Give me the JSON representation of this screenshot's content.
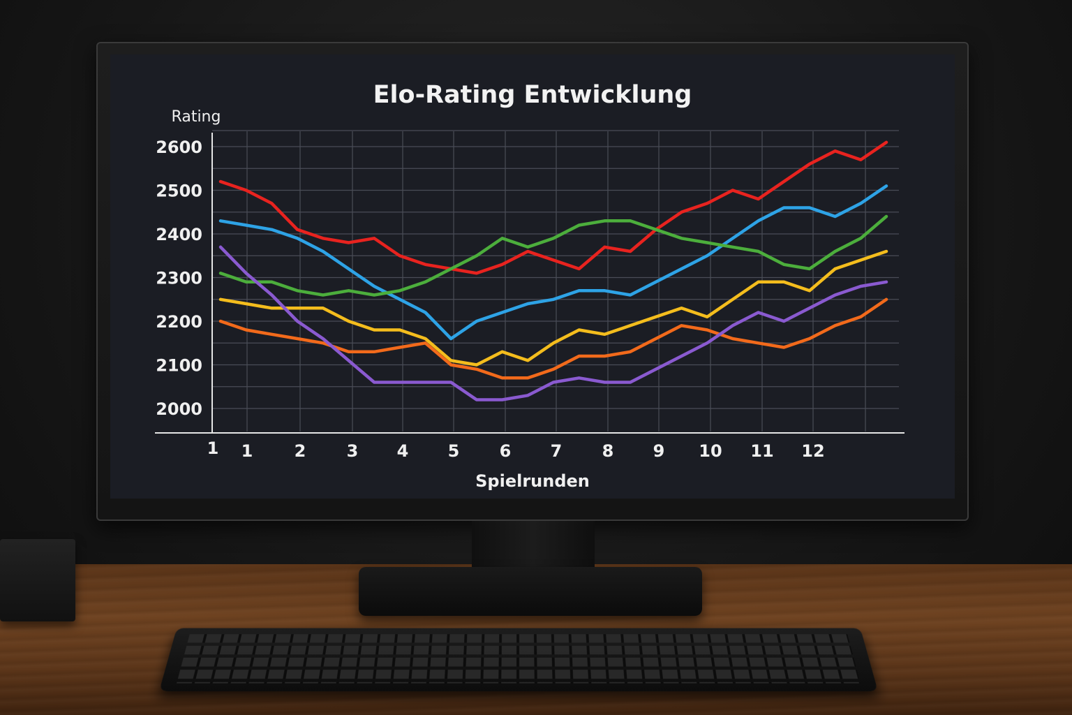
{
  "chart_data": {
    "type": "line",
    "title": "Elo-Rating Entwicklung",
    "xlabel": "Spielrunden",
    "ylabel": "Rating",
    "x_tick_labels": [
      "1",
      "1",
      "2",
      "3",
      "4",
      "5",
      "6",
      "7",
      "8",
      "9",
      "10",
      "11",
      "12"
    ],
    "y_tick_labels": [
      "2600",
      "2500",
      "2400",
      "2300",
      "2200",
      "2100",
      "2000"
    ],
    "ylim": [
      2000,
      2600
    ],
    "grid": true,
    "x": [
      0,
      0.5,
      1,
      1.5,
      2,
      2.5,
      3,
      3.5,
      4,
      4.5,
      5,
      5.5,
      6,
      6.5,
      7,
      7.5,
      8,
      8.5,
      9,
      9.5,
      10,
      10.5,
      11,
      11.5,
      12,
      12.5,
      13
    ],
    "series": [
      {
        "color": "#e8231f",
        "values": [
          2520,
          2500,
          2470,
          2410,
          2390,
          2380,
          2390,
          2350,
          2330,
          2320,
          2310,
          2330,
          2360,
          2340,
          2320,
          2370,
          2360,
          2410,
          2450,
          2470,
          2500,
          2480,
          2520,
          2560,
          2590,
          2570,
          2610
        ]
      },
      {
        "color": "#2ea3e6",
        "values": [
          2430,
          2420,
          2410,
          2390,
          2360,
          2320,
          2280,
          2250,
          2220,
          2160,
          2200,
          2220,
          2240,
          2250,
          2270,
          2270,
          2260,
          2290,
          2320,
          2350,
          2390,
          2430,
          2460,
          2460,
          2440,
          2470,
          2510
        ]
      },
      {
        "color": "#4cae3c",
        "values": [
          2310,
          2290,
          2290,
          2270,
          2260,
          2270,
          2260,
          2270,
          2290,
          2320,
          2350,
          2390,
          2370,
          2390,
          2420,
          2430,
          2430,
          2410,
          2390,
          2380,
          2370,
          2360,
          2330,
          2320,
          2360,
          2390,
          2440
        ]
      },
      {
        "color": "#f4bd1d",
        "values": [
          2250,
          2240,
          2230,
          2230,
          2230,
          2200,
          2180,
          2180,
          2160,
          2110,
          2100,
          2130,
          2110,
          2150,
          2180,
          2170,
          2190,
          2210,
          2230,
          2210,
          2250,
          2290,
          2290,
          2270,
          2320,
          2340,
          2360
        ]
      },
      {
        "color": "#f26a1b",
        "values": [
          2200,
          2180,
          2170,
          2160,
          2150,
          2130,
          2130,
          2140,
          2150,
          2100,
          2090,
          2070,
          2070,
          2090,
          2120,
          2120,
          2130,
          2160,
          2190,
          2180,
          2160,
          2150,
          2140,
          2160,
          2190,
          2210,
          2250
        ]
      },
      {
        "color": "#8a5ad0",
        "values": [
          2370,
          2310,
          2260,
          2200,
          2160,
          2110,
          2060,
          2060,
          2060,
          2060,
          2020,
          2020,
          2030,
          2060,
          2070,
          2060,
          2060,
          2090,
          2120,
          2150,
          2190,
          2220,
          2200,
          2230,
          2260,
          2280,
          2290
        ]
      }
    ]
  }
}
